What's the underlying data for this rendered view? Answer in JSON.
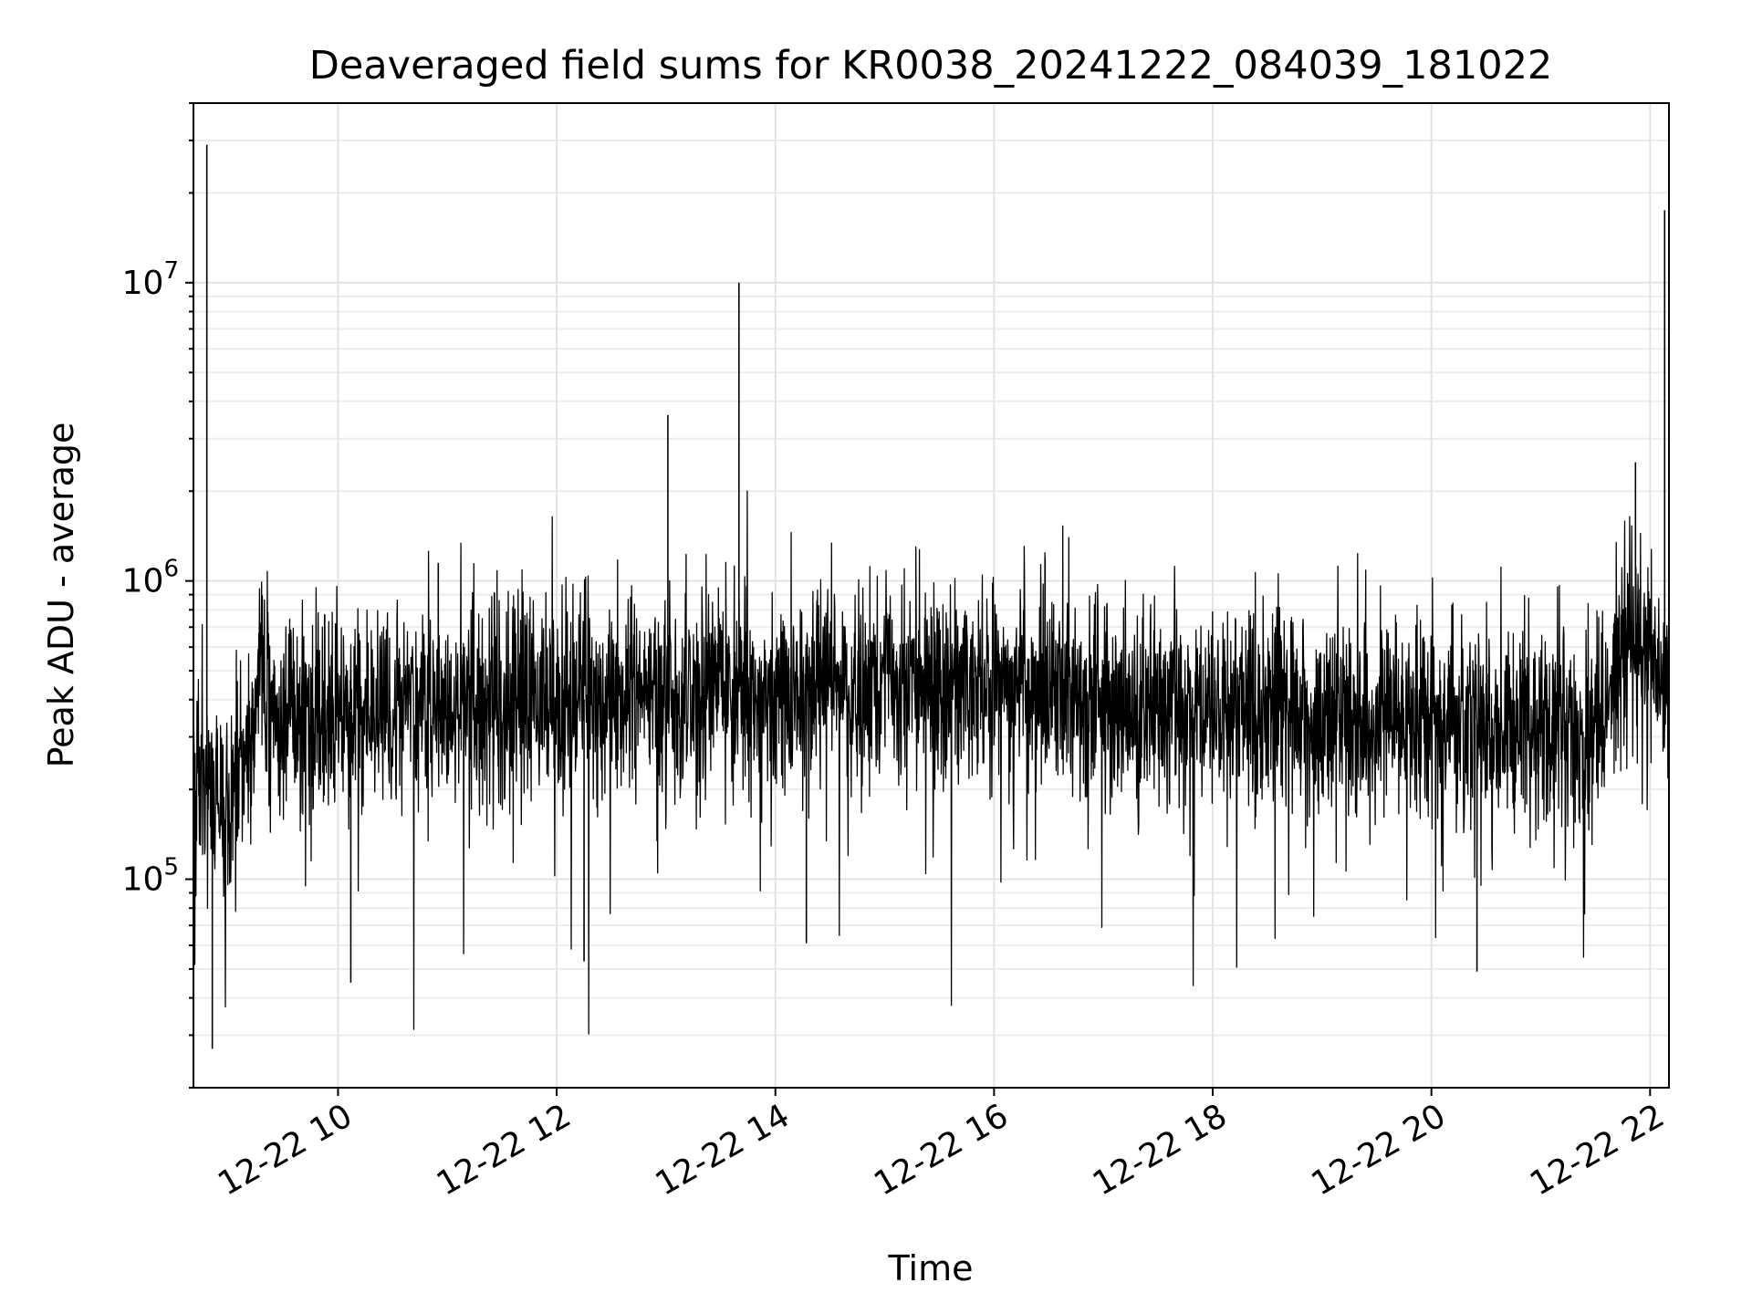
{
  "chart_data": {
    "type": "line",
    "title": "Deaveraged field sums for KR0038_20241222_084039_181022",
    "xlabel": "Time",
    "ylabel": "Peak ADU - average",
    "yscale": "log",
    "ylim": [
      20000,
      40000000
    ],
    "xlim": [
      "2024-12-22T08:40:39",
      "2024-12-22T22:10:22"
    ],
    "grid": true,
    "legend": "none",
    "line_color": "#000000",
    "x_ticks": [
      {
        "label": "12-22 10",
        "time": "2024-12-22T10:00"
      },
      {
        "label": "12-22 12",
        "time": "2024-12-22T12:00"
      },
      {
        "label": "12-22 14",
        "time": "2024-12-22T14:00"
      },
      {
        "label": "12-22 16",
        "time": "2024-12-22T16:00"
      },
      {
        "label": "12-22 18",
        "time": "2024-12-22T18:00"
      },
      {
        "label": "12-22 20",
        "time": "2024-12-22T20:00"
      },
      {
        "label": "12-22 22",
        "time": "2024-12-22T22:00"
      }
    ],
    "y_ticks": [
      {
        "base": "10",
        "exp": "5",
        "value": 100000
      },
      {
        "base": "10",
        "exp": "6",
        "value": 1000000
      },
      {
        "base": "10",
        "exp": "7",
        "value": 10000000
      }
    ],
    "baseline_profile": {
      "description_free": true,
      "segments": [
        {
          "time": "2024-12-22T08:40",
          "median": 200000
        },
        {
          "time": "2024-12-22T09:00",
          "median": 180000
        },
        {
          "time": "2024-12-22T09:15",
          "median": 350000
        },
        {
          "time": "2024-12-22T11:00",
          "median": 380000
        },
        {
          "time": "2024-12-22T14:00",
          "median": 430000
        },
        {
          "time": "2024-12-22T16:00",
          "median": 450000
        },
        {
          "time": "2024-12-22T17:00",
          "median": 370000
        },
        {
          "time": "2024-12-22T21:30",
          "median": 320000
        },
        {
          "time": "2024-12-22T21:45",
          "median": 600000
        },
        {
          "time": "2024-12-22T22:10",
          "median": 450000
        }
      ]
    },
    "spikes": [
      {
        "time": "2024-12-22T08:48",
        "value": 29000000
      },
      {
        "time": "2024-12-22T08:51",
        "value": 27000
      },
      {
        "time": "2024-12-22T10:07",
        "value": 45000
      },
      {
        "time": "2024-12-22T10:55",
        "value": 1150000
      },
      {
        "time": "2024-12-22T12:15",
        "value": 53000
      },
      {
        "time": "2024-12-22T13:01",
        "value": 3600000
      },
      {
        "time": "2024-12-22T13:40",
        "value": 10000000
      },
      {
        "time": "2024-12-22T14:17",
        "value": 61000
      },
      {
        "time": "2024-12-22T16:28",
        "value": 1200000
      },
      {
        "time": "2024-12-22T20:25",
        "value": 49000
      },
      {
        "time": "2024-12-22T21:52",
        "value": 2500000
      },
      {
        "time": "2024-12-22T22:08",
        "value": 17500000
      }
    ]
  }
}
